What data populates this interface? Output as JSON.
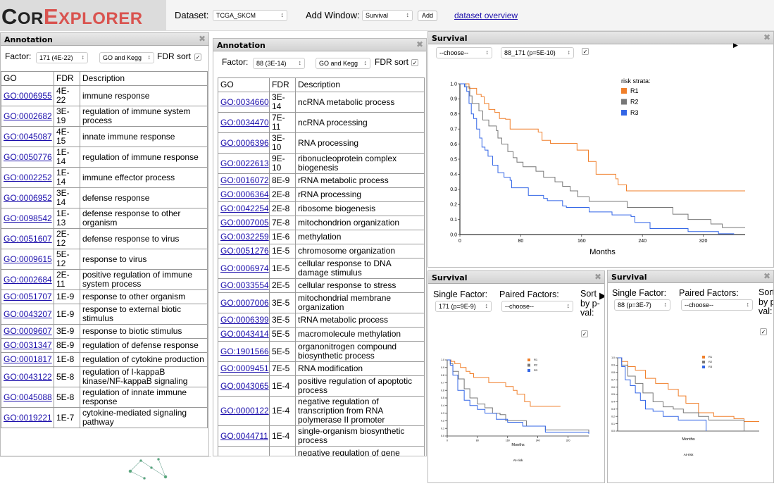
{
  "header": {
    "logo": "CorExplorer",
    "logo_parts": [
      "C",
      "OR",
      "E",
      "XPLORER"
    ],
    "dataset_label": "Dataset:",
    "dataset_value": "TCGA_SKCM",
    "add_window_label": "Add Window:",
    "add_window_value": "Survival",
    "add_button": "Add",
    "overview_link": "dataset overview"
  },
  "annotation1": {
    "title": "Annotation",
    "factor_label": "Factor:",
    "factor_value": "171 (4E-22)",
    "source_value": "GO and Kegg",
    "fdr_sort_label": "FDR sort",
    "fdr_sort_checked": true,
    "columns": [
      "GO",
      "FDR",
      "Description"
    ],
    "rows": [
      [
        "GO:0006955",
        "4E-22",
        "immune response"
      ],
      [
        "GO:0002682",
        "3E-19",
        "regulation of immune system process"
      ],
      [
        "GO:0045087",
        "4E-15",
        "innate immune response"
      ],
      [
        "GO:0050776",
        "1E-14",
        "regulation of immune response"
      ],
      [
        "GO:0002252",
        "1E-14",
        "immune effector process"
      ],
      [
        "GO:0006952",
        "3E-14",
        "defense response"
      ],
      [
        "GO:0098542",
        "1E-13",
        "defense response to other organism"
      ],
      [
        "GO:0051607",
        "2E-12",
        "defense response to virus"
      ],
      [
        "GO:0009615",
        "5E-12",
        "response to virus"
      ],
      [
        "GO:0002684",
        "2E-11",
        "positive regulation of immune system process"
      ],
      [
        "GO:0051707",
        "1E-9",
        "response to other organism"
      ],
      [
        "GO:0043207",
        "1E-9",
        "response to external biotic stimulus"
      ],
      [
        "GO:0009607",
        "3E-9",
        "response to biotic stimulus"
      ],
      [
        "GO:0031347",
        "8E-9",
        "regulation of defense response"
      ],
      [
        "GO:0001817",
        "1E-8",
        "regulation of cytokine production"
      ],
      [
        "GO:0043122",
        "5E-8",
        "regulation of I-kappaB kinase/NF-kappaB signaling"
      ],
      [
        "GO:0045088",
        "5E-8",
        "regulation of innate immune response"
      ],
      [
        "GO:0019221",
        "1E-7",
        "cytokine-mediated signaling pathway"
      ]
    ]
  },
  "annotation2": {
    "title": "Annotation",
    "factor_label": "Factor:",
    "factor_value": "88 (3E-14)",
    "source_value": "GO and Kegg",
    "fdr_sort_label": "FDR sort",
    "fdr_sort_checked": true,
    "columns": [
      "GO",
      "FDR",
      "Description"
    ],
    "rows": [
      [
        "GO:0034660",
        "3E-14",
        "ncRNA metabolic process"
      ],
      [
        "GO:0034470",
        "7E-11",
        "ncRNA processing"
      ],
      [
        "GO:0006396",
        "3E-10",
        "RNA processing"
      ],
      [
        "GO:0022613",
        "9E-10",
        "ribonucleoprotein complex biogenesis"
      ],
      [
        "GO:0016072",
        "8E-9",
        "rRNA metabolic process"
      ],
      [
        "GO:0006364",
        "2E-8",
        "rRNA processing"
      ],
      [
        "GO:0042254",
        "2E-8",
        "ribosome biogenesis"
      ],
      [
        "GO:0007005",
        "7E-8",
        "mitochondrion organization"
      ],
      [
        "GO:0032259",
        "1E-6",
        "methylation"
      ],
      [
        "GO:0051276",
        "1E-5",
        "chromosome organization"
      ],
      [
        "GO:0006974",
        "1E-5",
        "cellular response to DNA damage stimulus"
      ],
      [
        "GO:0033554",
        "2E-5",
        "cellular response to stress"
      ],
      [
        "GO:0007006",
        "3E-5",
        "mitochondrial membrane organization"
      ],
      [
        "GO:0006399",
        "3E-5",
        "tRNA metabolic process"
      ],
      [
        "GO:0043414",
        "5E-5",
        "macromolecule methylation"
      ],
      [
        "GO:1901566",
        "5E-5",
        "organonitrogen compound biosynthetic process"
      ],
      [
        "GO:0009451",
        "7E-5",
        "RNA modification"
      ],
      [
        "GO:0043065",
        "1E-4",
        "positive regulation of apoptotic process"
      ],
      [
        "GO:0000122",
        "1E-4",
        "negative regulation of transcription from RNA polymerase II promoter"
      ],
      [
        "GO:0044711",
        "1E-4",
        "single-organism biosynthetic process"
      ],
      [
        "",
        "",
        "negative regulation of gene"
      ]
    ]
  },
  "survival_main": {
    "title": "Survival",
    "single_value": "--choose--",
    "paired_value": "88_171 (p=5E-10)",
    "sort_checked": true
  },
  "survival_left": {
    "title": "Survival",
    "single_label": "Single Factor:",
    "single_value": "171 (p=9E-9)",
    "paired_label": "Paired Factors:",
    "paired_value": "--choose--",
    "sort_label": "Sort by p-val:",
    "sort_checked": true
  },
  "survival_right": {
    "title": "Survival",
    "single_label": "Single Factor:",
    "single_value": "88 (p=3E-7)",
    "paired_label": "Paired Factors:",
    "paired_value": "--choose--",
    "sort_label": "Sort by p-val:",
    "sort_checked": true
  },
  "colors": {
    "R1": "#f07f2a",
    "R2": "#777777",
    "R3": "#3366e6",
    "link": "#1a0dab",
    "logo": "#d9534f"
  },
  "chart_data": [
    {
      "type": "line",
      "step": true,
      "xlabel": "Months",
      "ylabel": "",
      "xlim": [
        0,
        375
      ],
      "ylim": [
        0,
        1
      ],
      "xticks": [
        0,
        80,
        160,
        240,
        320
      ],
      "yticks": [
        0,
        0.1,
        0.2,
        0.3,
        0.4,
        0.5,
        0.6,
        0.7,
        0.8,
        0.9,
        1.0
      ],
      "legend_title": "risk strata:",
      "legend_placement": "top-right",
      "series": [
        {
          "name": "R1",
          "points": [
            [
              0,
              1
            ],
            [
              6,
              1
            ],
            [
              12,
              0.97
            ],
            [
              22,
              0.93
            ],
            [
              28,
              0.915
            ],
            [
              32,
              0.87
            ],
            [
              38,
              0.83
            ],
            [
              46,
              0.81
            ],
            [
              52,
              0.77
            ],
            [
              60,
              0.765
            ],
            [
              66,
              0.7
            ],
            [
              97,
              0.7
            ],
            [
              103,
              0.68
            ],
            [
              108,
              0.625
            ],
            [
              119,
              0.605
            ],
            [
              146,
              0.605
            ],
            [
              154,
              0.56
            ],
            [
              163,
              0.56
            ],
            [
              169,
              0.485
            ],
            [
              179,
              0.4
            ],
            [
              205,
              0.37
            ],
            [
              208,
              0.33
            ],
            [
              219,
              0.29
            ],
            [
              375,
              0.29
            ]
          ]
        },
        {
          "name": "R2",
          "points": [
            [
              0,
              1
            ],
            [
              8,
              0.98
            ],
            [
              13,
              0.92
            ],
            [
              16,
              0.87
            ],
            [
              25,
              0.82
            ],
            [
              30,
              0.76
            ],
            [
              38,
              0.72
            ],
            [
              48,
              0.69
            ],
            [
              50,
              0.64
            ],
            [
              55,
              0.6
            ],
            [
              63,
              0.55
            ],
            [
              70,
              0.51
            ],
            [
              75,
              0.48
            ],
            [
              83,
              0.45
            ],
            [
              93,
              0.45
            ],
            [
              100,
              0.42
            ],
            [
              110,
              0.38
            ],
            [
              125,
              0.35
            ],
            [
              135,
              0.32
            ],
            [
              145,
              0.29
            ],
            [
              152,
              0.29
            ],
            [
              155,
              0.25
            ],
            [
              165,
              0.25
            ],
            [
              170,
              0.22
            ],
            [
              205,
              0.22
            ],
            [
              220,
              0.18
            ],
            [
              253,
              0.18
            ],
            [
              280,
              0.135
            ],
            [
              300,
              0.1
            ],
            [
              330,
              0.07
            ],
            [
              345,
              0.047
            ],
            [
              375,
              0.047
            ]
          ]
        },
        {
          "name": "R3",
          "points": [
            [
              0,
              1
            ],
            [
              6,
              0.98
            ],
            [
              9,
              0.95
            ],
            [
              12,
              0.87
            ],
            [
              15,
              0.8
            ],
            [
              18,
              0.77
            ],
            [
              22,
              0.7
            ],
            [
              26,
              0.64
            ],
            [
              29,
              0.58
            ],
            [
              33,
              0.56
            ],
            [
              37,
              0.52
            ],
            [
              43,
              0.46
            ],
            [
              50,
              0.41
            ],
            [
              58,
              0.38
            ],
            [
              66,
              0.36
            ],
            [
              68,
              0.31
            ],
            [
              75,
              0.31
            ],
            [
              90,
              0.26
            ],
            [
              102,
              0.26
            ],
            [
              110,
              0.24
            ],
            [
              115,
              0.225
            ],
            [
              130,
              0.225
            ],
            [
              135,
              0.19
            ],
            [
              140,
              0.18
            ],
            [
              170,
              0.15
            ],
            [
              200,
              0.13
            ],
            [
              225,
              0.12
            ],
            [
              230,
              0.08
            ],
            [
              250,
              0.04
            ],
            [
              300,
              0.02
            ],
            [
              340,
              0.005
            ],
            [
              360,
              0
            ]
          ]
        }
      ]
    },
    {
      "type": "line",
      "step": true,
      "xlabel": "Months",
      "at_risk_label": "At-risk",
      "xlim": [
        0,
        375
      ],
      "ylim": [
        0,
        1
      ],
      "xticks": [
        0,
        80,
        160,
        240,
        320
      ],
      "yticks": [
        0,
        0.1,
        0.2,
        0.3,
        0.4,
        0.5,
        0.6,
        0.7,
        0.8,
        0.9,
        1.0
      ],
      "legend_placement": "top-right",
      "series": [
        {
          "name": "R1",
          "points": [
            [
              0,
              1
            ],
            [
              10,
              0.98
            ],
            [
              20,
              0.95
            ],
            [
              35,
              0.9
            ],
            [
              50,
              0.85
            ],
            [
              60,
              0.82
            ],
            [
              70,
              0.77
            ],
            [
              95,
              0.77
            ],
            [
              110,
              0.7
            ],
            [
              145,
              0.7
            ],
            [
              155,
              0.65
            ],
            [
              175,
              0.6
            ],
            [
              185,
              0.55
            ],
            [
              205,
              0.45
            ],
            [
              220,
              0.39
            ],
            [
              300,
              0.39
            ]
          ]
        },
        {
          "name": "R2",
          "points": [
            [
              0,
              1
            ],
            [
              8,
              0.95
            ],
            [
              15,
              0.85
            ],
            [
              30,
              0.75
            ],
            [
              45,
              0.62
            ],
            [
              60,
              0.5
            ],
            [
              80,
              0.42
            ],
            [
              100,
              0.37
            ],
            [
              120,
              0.3
            ],
            [
              140,
              0.28
            ],
            [
              155,
              0.2
            ],
            [
              180,
              0.2
            ],
            [
              210,
              0.13
            ],
            [
              260,
              0.08
            ],
            [
              375,
              0.03
            ]
          ]
        },
        {
          "name": "R3",
          "points": [
            [
              0,
              1
            ],
            [
              8,
              0.93
            ],
            [
              15,
              0.8
            ],
            [
              28,
              0.6
            ],
            [
              45,
              0.47
            ],
            [
              60,
              0.4
            ],
            [
              80,
              0.35
            ],
            [
              100,
              0.3
            ],
            [
              130,
              0.22
            ],
            [
              160,
              0.18
            ],
            [
              200,
              0.13
            ],
            [
              260,
              0.05
            ],
            [
              375,
              0.03
            ]
          ]
        }
      ]
    },
    {
      "type": "line",
      "step": true,
      "xlabel": "Months",
      "at_risk_label": "At-risk",
      "ylim": [
        0,
        1
      ],
      "yticks": [
        0,
        0.1,
        0.2,
        0.3,
        0.4,
        0.5,
        0.6,
        0.7,
        0.8,
        0.9,
        1.0
      ],
      "legend_placement": "top-right",
      "series": [
        {
          "name": "R1",
          "points": [
            [
              0,
              1
            ],
            [
              8,
              0.95
            ],
            [
              20,
              0.88
            ],
            [
              35,
              0.83
            ],
            [
              55,
              0.72
            ],
            [
              75,
              0.65
            ],
            [
              100,
              0.57
            ],
            [
              120,
              0.48
            ],
            [
              135,
              0.38
            ],
            [
              160,
              0.25
            ],
            [
              190,
              0.2
            ],
            [
              230,
              0.17
            ],
            [
              250,
              0.13
            ],
            [
              280,
              0.13
            ]
          ]
        },
        {
          "name": "R2",
          "points": [
            [
              0,
              1
            ],
            [
              8,
              0.9
            ],
            [
              20,
              0.75
            ],
            [
              35,
              0.65
            ],
            [
              50,
              0.52
            ],
            [
              70,
              0.4
            ],
            [
              90,
              0.33
            ],
            [
              110,
              0.3
            ],
            [
              130,
              0.25
            ],
            [
              160,
              0.2
            ],
            [
              180,
              0.15
            ],
            [
              250,
              0
            ]
          ]
        },
        {
          "name": "R3",
          "points": [
            [
              0,
              1
            ],
            [
              8,
              0.88
            ],
            [
              15,
              0.7
            ],
            [
              25,
              0.62
            ],
            [
              35,
              0.52
            ],
            [
              45,
              0.42
            ],
            [
              55,
              0.3
            ],
            [
              70,
              0.27
            ],
            [
              90,
              0.2
            ],
            [
              120,
              0.15
            ],
            [
              175,
              0.15
            ],
            [
              175,
              0
            ]
          ]
        }
      ]
    }
  ]
}
